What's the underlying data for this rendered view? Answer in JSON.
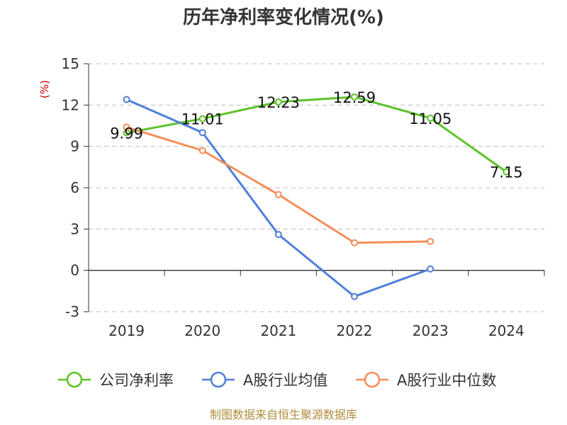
{
  "chart_data": {
    "type": "line",
    "title": "历年净利率变化情况(%)",
    "unit_label": "(%)",
    "categories": [
      "2019",
      "2020",
      "2021",
      "2022",
      "2023",
      "2024"
    ],
    "ylim": [
      -3,
      15
    ],
    "yticks": [
      -3,
      0,
      3,
      6,
      9,
      12,
      15
    ],
    "grid": true,
    "legend_position": "bottom",
    "series": [
      {
        "name": "公司净利率",
        "color": "#5cc329",
        "values": [
          9.99,
          11.01,
          12.23,
          12.59,
          11.05,
          7.15
        ],
        "labels": [
          "9.99",
          "11.01",
          "12.23",
          "12.59",
          "11.05",
          "7.15"
        ]
      },
      {
        "name": "A股行业均值",
        "color": "#4f7fd9",
        "values": [
          12.4,
          10.0,
          2.6,
          -1.9,
          0.1,
          null
        ]
      },
      {
        "name": "A股行业中位数",
        "color": "#f58e5a",
        "values": [
          10.4,
          8.7,
          5.5,
          2.0,
          2.1,
          null
        ]
      }
    ],
    "source": "制图数据来自恒生聚源数据库"
  }
}
